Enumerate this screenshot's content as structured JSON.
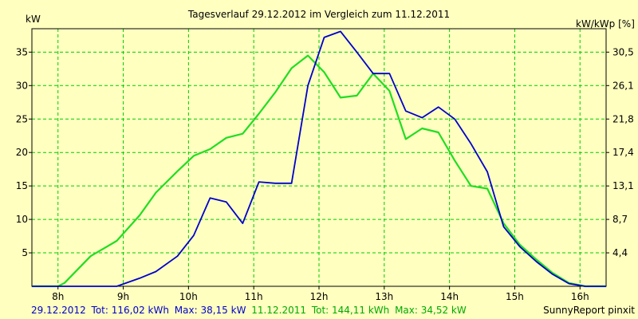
{
  "chart_data": {
    "type": "line",
    "title": "Tagesverlauf 29.12.2012 im Vergleich zum 11.12.2011",
    "ylabel_left": "kW",
    "ylabel_right": "kW/kWp [%]",
    "x_ticks": [
      "8h",
      "9h",
      "10h",
      "11h",
      "12h",
      "13h",
      "14h",
      "15h",
      "16h"
    ],
    "y_ticks_left": [
      "5",
      "10",
      "15",
      "20",
      "25",
      "30",
      "35"
    ],
    "y_ticks_right": [
      "4,4",
      "8,7",
      "13,1",
      "17,4",
      "21,8",
      "26,1",
      "30,5"
    ],
    "xlim": [
      7.6,
      16.4
    ],
    "ylim": [
      0,
      38.5
    ],
    "grid": true,
    "series": [
      {
        "name": "29.12.2012",
        "color": "#0000cc",
        "x": [
          7.6,
          8.0,
          8.5,
          8.9,
          9.25,
          9.5,
          9.83,
          10.08,
          10.33,
          10.58,
          10.83,
          11.08,
          11.33,
          11.58,
          11.83,
          12.08,
          12.33,
          12.58,
          12.83,
          13.08,
          13.33,
          13.58,
          13.83,
          14.08,
          14.33,
          14.58,
          14.83,
          15.08,
          15.33,
          15.58,
          15.83,
          16.08,
          16.4
        ],
        "values": [
          0,
          0,
          0,
          0,
          1.2,
          2.2,
          4.5,
          7.6,
          13.2,
          12.6,
          9.4,
          15.6,
          15.4,
          15.4,
          30.0,
          37.2,
          38.1,
          35.0,
          31.8,
          31.8,
          26.2,
          25.2,
          26.8,
          25.0,
          21.3,
          17.1,
          8.9,
          5.9,
          3.7,
          1.8,
          0.4,
          0.0,
          0
        ]
      },
      {
        "name": "11.12.2011",
        "color": "#22dd22",
        "x": [
          7.6,
          8.0,
          8.1,
          8.5,
          8.9,
          9.25,
          9.5,
          9.83,
          10.08,
          10.33,
          10.58,
          10.83,
          11.08,
          11.33,
          11.58,
          11.83,
          12.08,
          12.33,
          12.58,
          12.83,
          13.08,
          13.33,
          13.58,
          13.83,
          14.08,
          14.33,
          14.58,
          14.83,
          15.08,
          15.33,
          15.58,
          15.83,
          16.08,
          16.4
        ],
        "values": [
          0,
          0,
          0.5,
          4.5,
          6.8,
          10.6,
          14.0,
          17.2,
          19.5,
          20.5,
          22.2,
          22.8,
          25.8,
          29.0,
          32.6,
          34.5,
          32.0,
          28.2,
          28.5,
          31.8,
          29.2,
          22.0,
          23.6,
          23.0,
          18.8,
          15.0,
          14.6,
          9.4,
          6.2,
          4.0,
          2.0,
          0.5,
          0.0,
          0
        ]
      }
    ]
  },
  "footer": {
    "series1_label": "29.12.2012",
    "series1_tot": "Tot: 116,02 kWh",
    "series1_max": "Max: 38,15 kW",
    "series2_label": "11.12.2011",
    "series2_tot": "Tot: 144,11 kWh",
    "series2_max": "Max: 34,52 kW",
    "brand": "SunnyReport pinxit"
  }
}
